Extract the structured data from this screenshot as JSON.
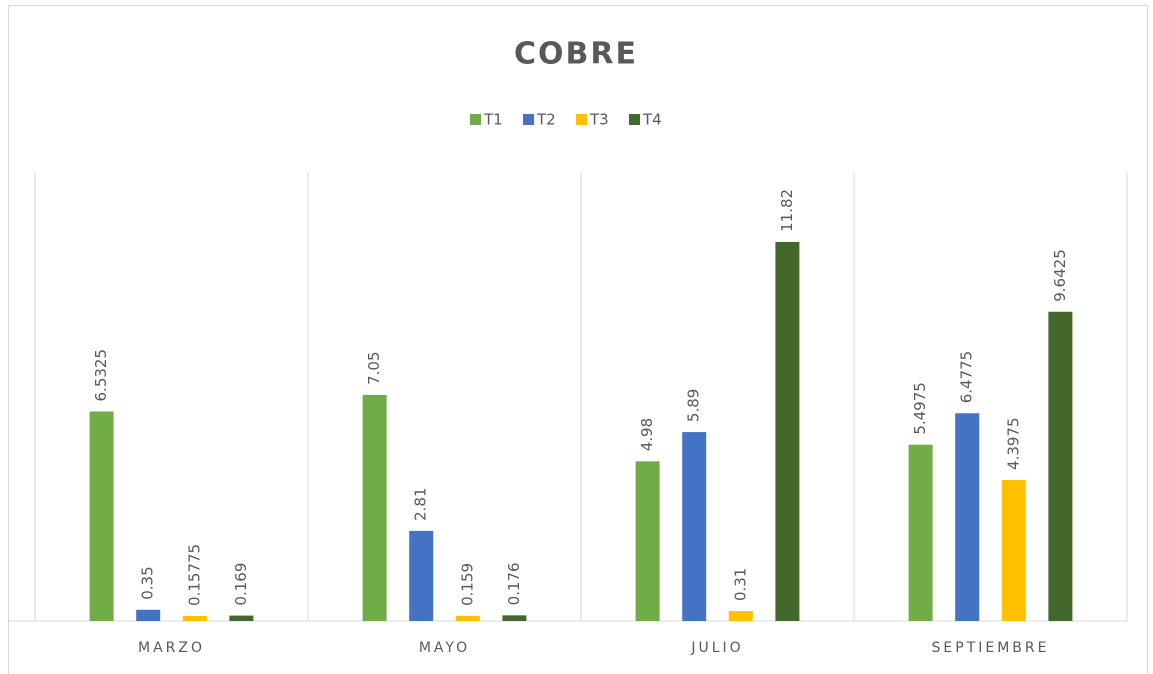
{
  "chart_data": {
    "type": "bar",
    "title": "COBRE",
    "categories": [
      "MARZO",
      "MAYO",
      "JULIO",
      "SEPTIEMBRE"
    ],
    "series": [
      {
        "name": "T1",
        "color": "#70ad47",
        "values": [
          6.5325,
          7.05,
          4.98,
          5.4975
        ]
      },
      {
        "name": "T2",
        "color": "#4472c4",
        "values": [
          0.35,
          2.81,
          5.89,
          6.4775
        ]
      },
      {
        "name": "T3",
        "color": "#ffc000",
        "values": [
          0.15775,
          0.159,
          0.31,
          4.3975
        ]
      },
      {
        "name": "T4",
        "color": "#43682b",
        "values": [
          0.169,
          0.176,
          11.82,
          9.6425
        ]
      }
    ],
    "ylim": [
      0,
      14
    ],
    "legend": "top"
  }
}
